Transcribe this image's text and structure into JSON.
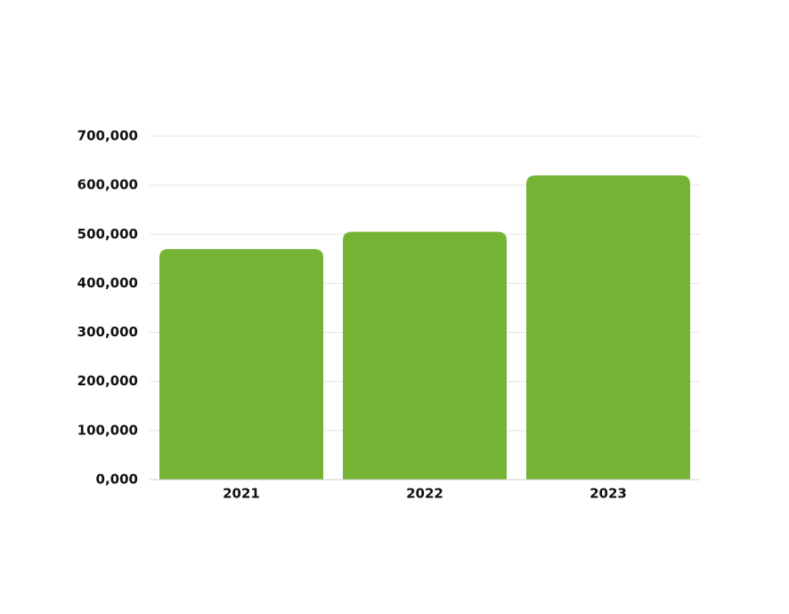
{
  "chart_data": {
    "type": "bar",
    "categories": [
      "2021",
      "2022",
      "2023"
    ],
    "values": [
      470000,
      505000,
      620000
    ],
    "color": "#74b334",
    "ylim": [
      0,
      700000
    ],
    "yticks": [
      {
        "value": 0,
        "label": "0,000"
      },
      {
        "value": 100000,
        "label": "100,000"
      },
      {
        "value": 200000,
        "label": "200,000"
      },
      {
        "value": 300000,
        "label": "300,000"
      },
      {
        "value": 400000,
        "label": "400,000"
      },
      {
        "value": 500000,
        "label": "500,000"
      },
      {
        "value": 600000,
        "label": "600,000"
      },
      {
        "value": 700000,
        "label": "700,000"
      }
    ],
    "grid": true
  }
}
